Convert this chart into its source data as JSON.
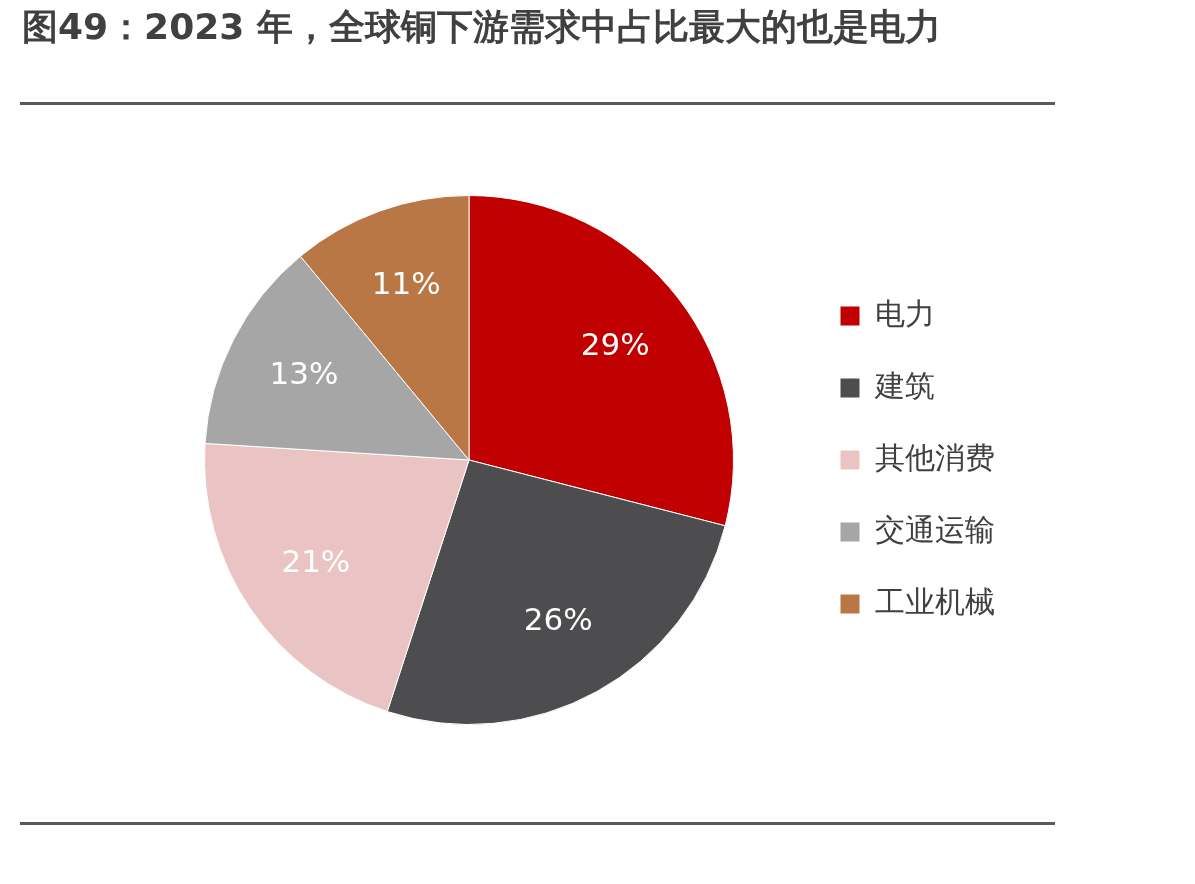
{
  "chart_data": {
    "type": "pie",
    "title": "图49：2023 年，全球铜下游需求中占比最大的也是电力",
    "categories": [
      "电力",
      "建筑",
      "其他消费",
      "交通运输",
      "工业机械"
    ],
    "values": [
      29,
      26,
      21,
      13,
      11
    ],
    "colors": [
      "#c00000",
      "#4d4d4f",
      "#eac3c3",
      "#a6a6a6",
      "#b87745"
    ],
    "value_labels": [
      "29%",
      "26%",
      "21%",
      "13%",
      "11%"
    ],
    "legend": "right"
  }
}
